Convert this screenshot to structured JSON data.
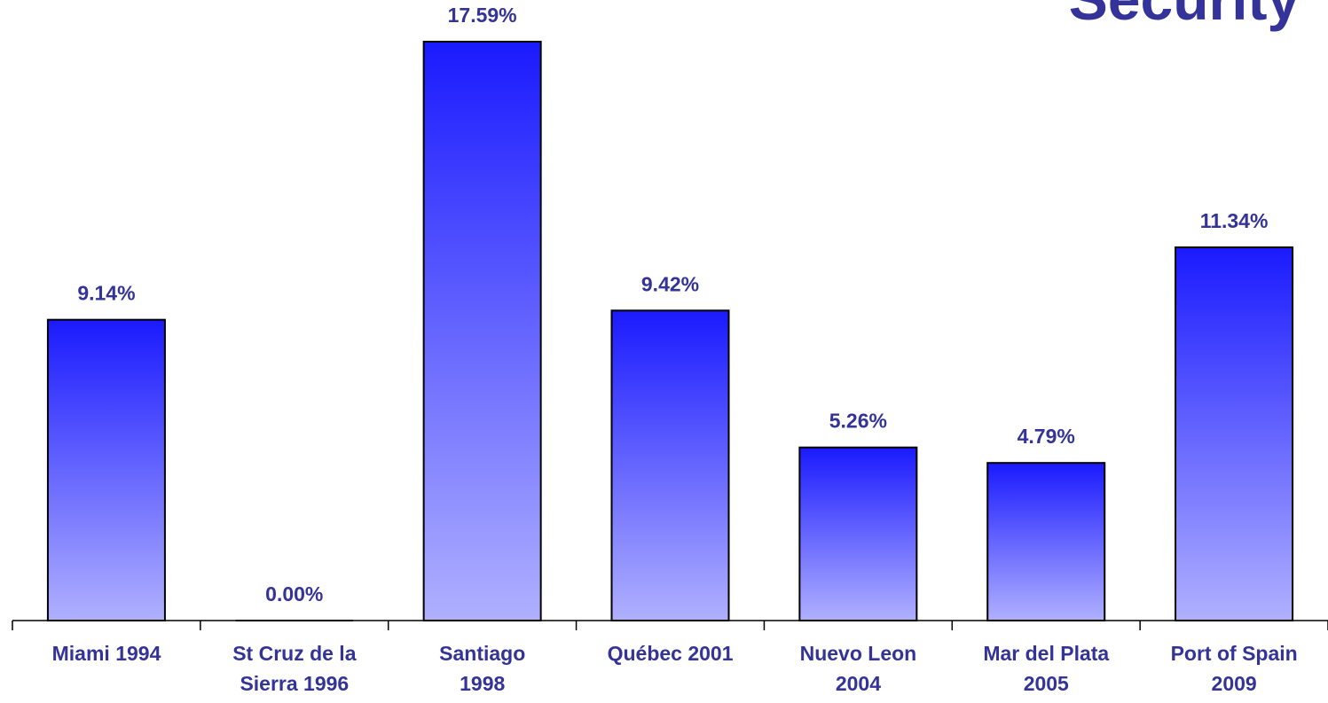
{
  "chart_data": {
    "type": "bar",
    "title": "Security",
    "categories": [
      "Miami 1994",
      "St Cruz de la\nSierra 1996",
      "Santiago\n1998",
      "Québec 2001",
      "Nuevo Leon\n2004",
      "Mar del Plata\n2005",
      "Port of Spain\n2009"
    ],
    "values": [
      9.14,
      0,
      17.59,
      9.42,
      5.26,
      4.79,
      11.34
    ],
    "value_labels": [
      "9.14%",
      "0.00%",
      "17.59%",
      "9.42%",
      "5.26%",
      "4.79%",
      "11.34%"
    ],
    "color": "#1a1aff"
  }
}
